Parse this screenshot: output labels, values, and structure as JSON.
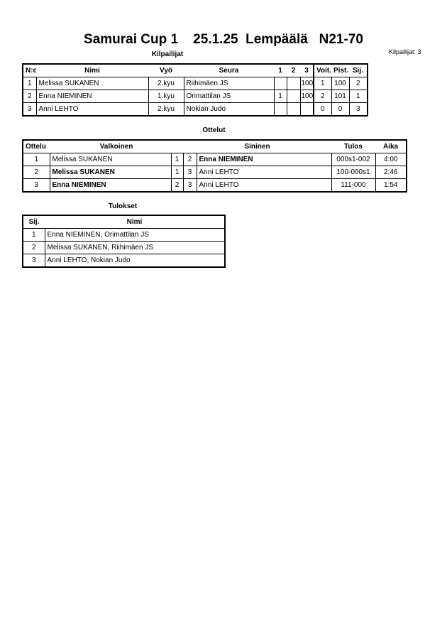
{
  "title": "Samurai Cup 1    25.1.25  Lempäälä   N21-70",
  "competitor_count": "Kilpailijat: 3",
  "competitors": {
    "caption": "Kilpailijat",
    "headers": [
      "N:o",
      "Nimi",
      "Vyö",
      "Seura",
      "1",
      "2",
      "3",
      "Voit.",
      "Pist.",
      "Sij."
    ],
    "rows": [
      [
        "1",
        "Melissa SUKANEN",
        "2.kyu",
        "Riihimäen JS",
        "",
        "",
        "100",
        "1",
        "100",
        "2"
      ],
      [
        "2",
        "Enna NIEMINEN",
        "1.kyu",
        "Orimattilan JS",
        "1",
        "",
        "100",
        "2",
        "101",
        "1"
      ],
      [
        "3",
        "Anni LEHTO",
        "2.kyu",
        "Nokian Judo",
        "",
        "",
        "",
        "0",
        "0",
        "3"
      ]
    ]
  },
  "matches": {
    "caption": "Ottelut",
    "headers": [
      "Ottelu",
      "Valkoinen",
      "Sininen",
      "Tulos",
      "Aika"
    ],
    "rows": [
      {
        "no": "1",
        "white": "Melissa SUKANEN",
        "white_no": "1",
        "blue_no": "2",
        "blue": "Enna NIEMINEN",
        "result": "000s1-002",
        "time": "4:00",
        "winner": "blue"
      },
      {
        "no": "2",
        "white": "Melissa SUKANEN",
        "white_no": "1",
        "blue_no": "3",
        "blue": "Anni LEHTO",
        "result": "100-000s1",
        "time": "2:46",
        "winner": "white"
      },
      {
        "no": "3",
        "white": "Enna NIEMINEN",
        "white_no": "2",
        "blue_no": "3",
        "blue": "Anni LEHTO",
        "result": "111-000",
        "time": "1:54",
        "winner": "white"
      }
    ]
  },
  "results": {
    "caption": "Tulokset",
    "headers": [
      "Sij.",
      "Nimi"
    ],
    "rows": [
      [
        "1",
        "Enna NIEMINEN, Orimattilan JS"
      ],
      [
        "2",
        "Melissa SUKANEN, Riihimäen JS"
      ],
      [
        "3",
        "Anni LEHTO, Nokian Judo"
      ]
    ]
  }
}
